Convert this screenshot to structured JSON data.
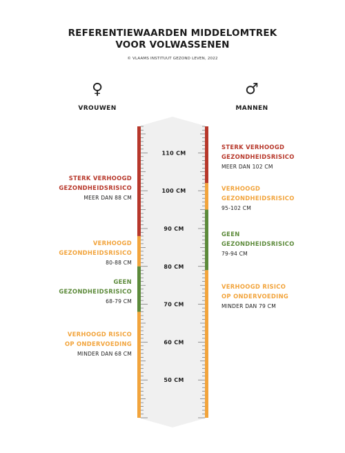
{
  "title": {
    "line1": "REFERENTIEWAARDEN MIDDELOMTREK",
    "line2": "VOOR VOLWASSENEN"
  },
  "credit": "© VLAAMS INSTITUUT GEZOND LEVEN, 2022",
  "women": {
    "symbol": "♀",
    "label": "VROUWEN",
    "categories": [
      {
        "name_lines": [
          "STERK VERHOOGD",
          "GEZONDHEIDSRISICO"
        ],
        "range": "MEER DAN 88 CM",
        "color": "#b7372a",
        "from_cm": 88,
        "to_cm": 117
      },
      {
        "name_lines": [
          "VERHOOGD",
          "GEZONDHEIDSRISICO"
        ],
        "range": "80-88 CM",
        "color": "#f2a43c",
        "from_cm": 80,
        "to_cm": 88
      },
      {
        "name_lines": [
          "GEEN",
          "GEZONDHEIDSRISICO"
        ],
        "range": "68-79 CM",
        "color": "#5c8a3a",
        "from_cm": 68,
        "to_cm": 80
      },
      {
        "name_lines": [
          "VERHOOGD RISICO",
          "OP ONDERVOEDING"
        ],
        "range": "MINDER DAN 68 CM",
        "color": "#f2a43c",
        "from_cm": 40,
        "to_cm": 68
      }
    ]
  },
  "men": {
    "symbol": "♂",
    "label": "MANNEN",
    "categories": [
      {
        "name_lines": [
          "STERK VERHOOGD",
          "GEZONDHEIDSRISICO"
        ],
        "range": "MEER DAN 102 CM",
        "color": "#b7372a",
        "from_cm": 102,
        "to_cm": 117
      },
      {
        "name_lines": [
          "VERHOOGD",
          "GEZONDHEIDSRISICO"
        ],
        "range": "95-102 CM",
        "color": "#f2a43c",
        "from_cm": 95,
        "to_cm": 102
      },
      {
        "name_lines": [
          "GEEN",
          "GEZONDHEIDSRISICO"
        ],
        "range": "79-94 CM",
        "color": "#5c8a3a",
        "from_cm": 79,
        "to_cm": 95
      },
      {
        "name_lines": [
          "VERHOOGD RISICO",
          "OP ONDERVOEDING"
        ],
        "range": "MINDER DAN 79 CM",
        "color": "#f2a43c",
        "from_cm": 40,
        "to_cm": 79
      }
    ]
  },
  "scale": {
    "min_cm": 40,
    "max_cm": 117,
    "labels": [
      {
        "value": 110,
        "text": "110 CM"
      },
      {
        "value": 100,
        "text": "100 CM"
      },
      {
        "value": 90,
        "text": "90 CM"
      },
      {
        "value": 80,
        "text": "80 CM"
      },
      {
        "value": 70,
        "text": "70 CM"
      },
      {
        "value": 60,
        "text": "60 CM"
      },
      {
        "value": 50,
        "text": "50 CM"
      }
    ]
  }
}
